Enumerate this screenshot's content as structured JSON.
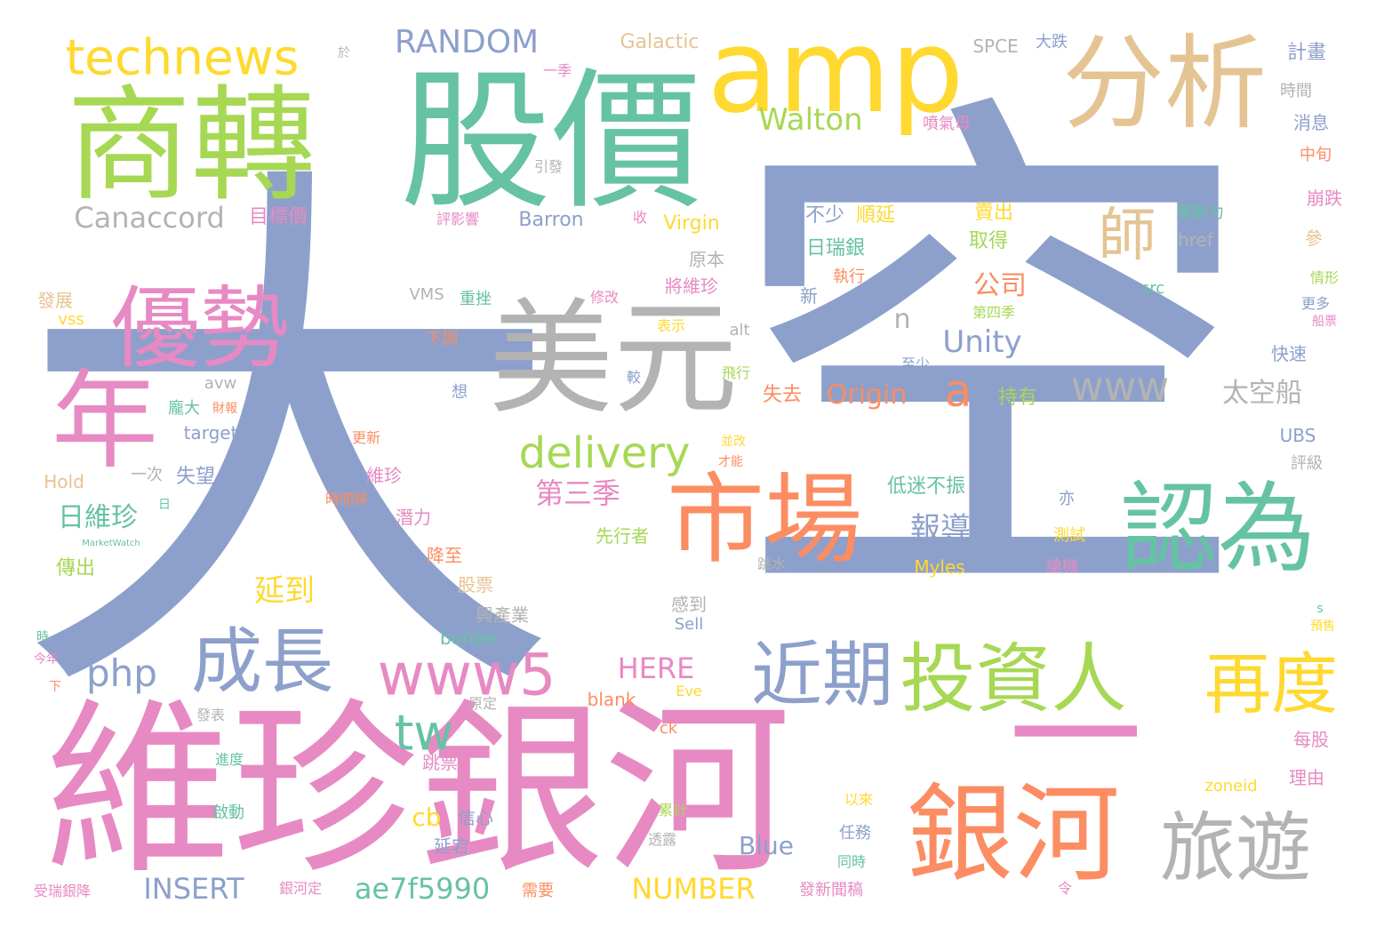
{
  "colors": {
    "blue": "#8da0cb",
    "pink": "#e78ac3",
    "green": "#66c2a5",
    "lime": "#a6d854",
    "yellow": "#ffd92f",
    "tan": "#e5c494",
    "gray": "#b3b3b3",
    "orange": "#fc8d62",
    "background": "#ffffff"
  },
  "words": [
    {
      "text": "大",
      "color": "blue"
    },
    {
      "text": "空",
      "color": "blue"
    },
    {
      "text": "維珍銀河",
      "color": "pink"
    },
    {
      "text": "股價",
      "color": "green"
    },
    {
      "text": "商轉",
      "color": "lime"
    },
    {
      "text": "一",
      "color": "pink"
    },
    {
      "text": "amp",
      "color": "yellow"
    },
    {
      "text": "分析",
      "color": "tan"
    },
    {
      "text": "美元",
      "color": "gray"
    },
    {
      "text": "年",
      "color": "pink"
    },
    {
      "text": "優勢",
      "color": "pink"
    },
    {
      "text": "市場",
      "color": "orange"
    },
    {
      "text": "認為",
      "color": "green"
    },
    {
      "text": "銀河",
      "color": "orange"
    },
    {
      "text": "旅遊",
      "color": "gray"
    },
    {
      "text": "投資人",
      "color": "lime"
    },
    {
      "text": "再度",
      "color": "yellow"
    },
    {
      "text": "近期",
      "color": "blue"
    },
    {
      "text": "成長",
      "color": "blue"
    },
    {
      "text": "www5",
      "color": "pink"
    },
    {
      "text": "technews",
      "color": "yellow"
    },
    {
      "text": "www",
      "color": "gray"
    },
    {
      "text": "師",
      "color": "tan"
    },
    {
      "text": "a",
      "color": "orange"
    },
    {
      "text": "delivery",
      "color": "lime"
    },
    {
      "text": "tw",
      "color": "green"
    },
    {
      "text": "php",
      "color": "blue"
    },
    {
      "text": "RANDOM",
      "color": "blue"
    },
    {
      "text": "Canaccord",
      "color": "gray"
    },
    {
      "text": "Walton",
      "color": "lime"
    },
    {
      "text": "Unity",
      "color": "blue"
    },
    {
      "text": "太空船",
      "color": "gray"
    },
    {
      "text": "Origin",
      "color": "orange"
    },
    {
      "text": "n",
      "color": "gray"
    },
    {
      "text": "日維珍",
      "color": "green"
    },
    {
      "text": "第三季",
      "color": "pink"
    },
    {
      "text": "延到",
      "color": "yellow"
    },
    {
      "text": "報導",
      "color": "blue"
    },
    {
      "text": "公司",
      "color": "orange"
    },
    {
      "text": "INSERT",
      "color": "blue"
    },
    {
      "text": "ae7f5990",
      "color": "green"
    },
    {
      "text": "NUMBER",
      "color": "yellow"
    },
    {
      "text": "HERE",
      "color": "pink"
    },
    {
      "text": "cb",
      "color": "yellow"
    },
    {
      "text": "Blue",
      "color": "blue"
    },
    {
      "text": "Barron",
      "color": "blue"
    },
    {
      "text": "Galactic",
      "color": "tan"
    },
    {
      "text": "SPCE",
      "color": "gray"
    },
    {
      "text": "大跌",
      "color": "blue"
    },
    {
      "text": "目標價",
      "color": "pink"
    },
    {
      "text": "Virgin",
      "color": "yellow"
    },
    {
      "text": "日瑞銀",
      "color": "green"
    },
    {
      "text": "不少",
      "color": "blue"
    },
    {
      "text": "順延",
      "color": "yellow"
    },
    {
      "text": "賣出",
      "color": "yellow"
    },
    {
      "text": "取得",
      "color": "lime"
    },
    {
      "text": "持有",
      "color": "lime"
    },
    {
      "text": "失去",
      "color": "orange"
    },
    {
      "text": "信心",
      "color": "blue"
    },
    {
      "text": "延宕",
      "color": "blue"
    },
    {
      "text": "跳票",
      "color": "pink"
    },
    {
      "text": "股票",
      "color": "tan"
    },
    {
      "text": "降至",
      "color": "orange"
    },
    {
      "text": "潛力",
      "color": "pink"
    },
    {
      "text": "維珍",
      "color": "pink"
    },
    {
      "text": "先行者",
      "color": "lime"
    },
    {
      "text": "興產業",
      "color": "gray"
    },
    {
      "text": "低迷不振",
      "color": "green"
    },
    {
      "text": "計畫",
      "color": "blue"
    },
    {
      "text": "時間",
      "color": "gray"
    },
    {
      "text": "消息",
      "color": "blue"
    },
    {
      "text": "中旬",
      "color": "orange"
    },
    {
      "text": "崩跌",
      "color": "pink"
    },
    {
      "text": "進動力",
      "color": "green"
    },
    {
      "text": "href",
      "color": "gray"
    },
    {
      "text": "參",
      "color": "tan"
    },
    {
      "text": "情形",
      "color": "lime"
    },
    {
      "text": "更多",
      "color": "blue"
    },
    {
      "text": "船票",
      "color": "pink"
    },
    {
      "text": "快速",
      "color": "blue"
    },
    {
      "text": "評級",
      "color": "gray"
    },
    {
      "text": "UBS",
      "color": "blue"
    },
    {
      "text": "每股",
      "color": "pink"
    },
    {
      "text": "理由",
      "color": "pink"
    },
    {
      "text": "噴氣母",
      "color": "pink"
    },
    {
      "text": "src",
      "color": "green"
    },
    {
      "text": "月初",
      "color": "blue"
    },
    {
      "text": "第四季",
      "color": "lime"
    },
    {
      "text": "將維珍",
      "color": "pink"
    },
    {
      "text": "原本",
      "color": "gray"
    },
    {
      "text": "執行",
      "color": "orange"
    },
    {
      "text": "新",
      "color": "blue"
    },
    {
      "text": "發展",
      "color": "tan"
    },
    {
      "text": "vss",
      "color": "yellow"
    },
    {
      "text": "img",
      "color": "blue"
    },
    {
      "text": "avw",
      "color": "gray"
    },
    {
      "text": "target",
      "color": "blue"
    },
    {
      "text": "龐大",
      "color": "green"
    },
    {
      "text": "財報",
      "color": "orange"
    },
    {
      "text": "Hold",
      "color": "tan"
    },
    {
      "text": "一次",
      "color": "gray"
    },
    {
      "text": "失望",
      "color": "blue"
    },
    {
      "text": "傳出",
      "color": "lime"
    },
    {
      "text": "重挫",
      "color": "green"
    },
    {
      "text": "下調",
      "color": "orange"
    },
    {
      "text": "表示",
      "color": "yellow"
    },
    {
      "text": "alt",
      "color": "gray"
    },
    {
      "text": "飛行",
      "color": "lime"
    },
    {
      "text": "至少",
      "color": "blue"
    },
    {
      "text": "想",
      "color": "blue"
    },
    {
      "text": "較",
      "color": "blue"
    },
    {
      "text": "感到",
      "color": "gray"
    },
    {
      "text": "Sell",
      "color": "blue"
    },
    {
      "text": "border",
      "color": "green"
    },
    {
      "text": "Myles",
      "color": "yellow"
    },
    {
      "text": "艙機",
      "color": "pink"
    },
    {
      "text": "測試",
      "color": "yellow"
    },
    {
      "text": "亦",
      "color": "blue"
    },
    {
      "text": "blank",
      "color": "orange"
    },
    {
      "text": "Eve",
      "color": "yellow"
    },
    {
      "text": "原定",
      "color": "gray"
    },
    {
      "text": "ck",
      "color": "orange"
    },
    {
      "text": "更新",
      "color": "orange"
    },
    {
      "text": "並改",
      "color": "yellow"
    },
    {
      "text": "才能",
      "color": "orange"
    },
    {
      "text": "跳水",
      "color": "gray"
    },
    {
      "text": "收",
      "color": "pink"
    },
    {
      "text": "評影響",
      "color": "pink"
    },
    {
      "text": "引發",
      "color": "gray"
    },
    {
      "text": "一季",
      "color": "pink"
    },
    {
      "text": "修改",
      "color": "pink"
    },
    {
      "text": "時間將",
      "color": "orange"
    },
    {
      "text": "zoneid",
      "color": "yellow"
    },
    {
      "text": "以來",
      "color": "yellow"
    },
    {
      "text": "累計",
      "color": "lime"
    },
    {
      "text": "任務",
      "color": "blue"
    },
    {
      "text": "同時",
      "color": "green"
    },
    {
      "text": "透露",
      "color": "gray"
    },
    {
      "text": "發新聞稿",
      "color": "pink"
    },
    {
      "text": "令",
      "color": "pink"
    },
    {
      "text": "需要",
      "color": "orange"
    },
    {
      "text": "銀河定",
      "color": "pink"
    },
    {
      "text": "受瑞銀降",
      "color": "pink"
    },
    {
      "text": "啟動",
      "color": "green"
    },
    {
      "text": "進度",
      "color": "green"
    },
    {
      "text": "發表",
      "color": "gray"
    },
    {
      "text": "今年",
      "color": "pink"
    },
    {
      "text": "下",
      "color": "orange"
    },
    {
      "text": "時",
      "color": "green"
    },
    {
      "text": "預售",
      "color": "yellow"
    },
    {
      "text": "s",
      "color": "green"
    },
    {
      "text": "VMS",
      "color": "gray"
    },
    {
      "text": "於",
      "color": "gray"
    },
    {
      "text": "日",
      "color": "green"
    },
    {
      "text": "MarketWatch",
      "color": "green"
    }
  ]
}
